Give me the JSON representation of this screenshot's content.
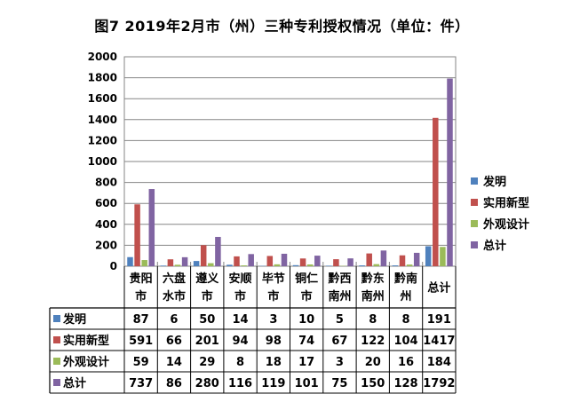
{
  "chart_data": {
    "type": "bar",
    "title": "图7  2019年2月市（州）三种专利授权情况（单位：件）",
    "categories": [
      [
        "贵阳",
        "市"
      ],
      [
        "六盘",
        "水市"
      ],
      [
        "遵义",
        "市"
      ],
      [
        "安顺",
        "市"
      ],
      [
        "毕节",
        "市"
      ],
      [
        "铜仁",
        "市"
      ],
      [
        "黔西",
        "南州"
      ],
      [
        "黔东",
        "南州"
      ],
      [
        "黔南",
        "州"
      ],
      [
        "总计"
      ]
    ],
    "series": [
      {
        "name": "发明",
        "color": "#4F81BD",
        "values": [
          87,
          6,
          50,
          14,
          3,
          10,
          5,
          8,
          8,
          191
        ]
      },
      {
        "name": "实用新型",
        "color": "#C0504D",
        "values": [
          591,
          66,
          201,
          94,
          98,
          74,
          67,
          122,
          104,
          1417
        ]
      },
      {
        "name": "外观设计",
        "color": "#9BBB59",
        "values": [
          59,
          14,
          29,
          8,
          18,
          17,
          3,
          20,
          16,
          184
        ]
      },
      {
        "name": "总计",
        "color": "#8064A2",
        "values": [
          737,
          86,
          280,
          116,
          119,
          101,
          75,
          150,
          128,
          1792
        ]
      }
    ],
    "ylim": [
      0,
      2000
    ],
    "yticks": [
      0,
      200,
      400,
      600,
      800,
      1000,
      1200,
      1400,
      1600,
      1800,
      2000
    ],
    "grid": true,
    "legend": "right",
    "data_table": true
  }
}
